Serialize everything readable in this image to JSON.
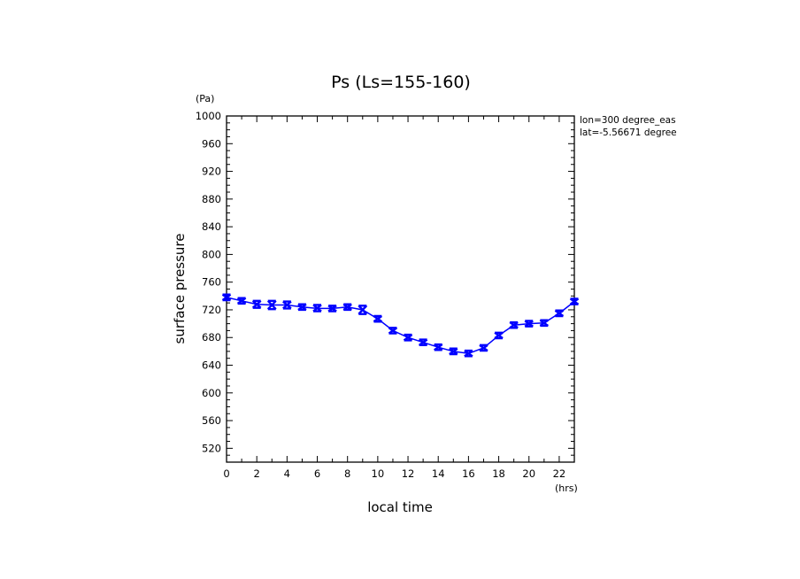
{
  "chart_data": {
    "type": "line",
    "title": "Ps (Ls=155-160)",
    "xlabel": "local time",
    "ylabel": "surface pressure",
    "x_unit": "(hrs)",
    "y_unit": "(Pa)",
    "xlim": [
      0,
      23
    ],
    "ylim": [
      500,
      1000
    ],
    "x_ticks": [
      0,
      2,
      4,
      6,
      8,
      10,
      12,
      14,
      16,
      18,
      20,
      22
    ],
    "y_ticks": [
      520,
      560,
      600,
      640,
      680,
      720,
      760,
      800,
      840,
      880,
      920,
      960,
      1000
    ],
    "grid": false,
    "annotations": [
      "lon=300 degree_eas",
      "lat=-5.56671 degree"
    ],
    "series": [
      {
        "x": [
          0,
          1,
          2,
          3,
          4,
          5,
          6,
          7,
          8,
          9,
          10,
          11,
          12,
          13,
          14,
          15,
          16,
          17,
          18,
          19,
          20,
          21,
          22,
          23
        ],
        "values": [
          738,
          733,
          728,
          727,
          727,
          724,
          722,
          722,
          724,
          720,
          707,
          690,
          680,
          673,
          666,
          660,
          657,
          665,
          683,
          698,
          700,
          701,
          715,
          732
        ],
        "ranges": [
          [
            734,
            742
          ],
          [
            729,
            737
          ],
          [
            723,
            733
          ],
          [
            721,
            733
          ],
          [
            722,
            732
          ],
          [
            720,
            728
          ],
          [
            718,
            727
          ],
          [
            718,
            726
          ],
          [
            720,
            728
          ],
          [
            714,
            726
          ],
          [
            703,
            711
          ],
          [
            686,
            694
          ],
          [
            676,
            684
          ],
          [
            669,
            677
          ],
          [
            662,
            670
          ],
          [
            656,
            664
          ],
          [
            653,
            661
          ],
          [
            661,
            669
          ],
          [
            679,
            687
          ],
          [
            694,
            702
          ],
          [
            696,
            704
          ],
          [
            697,
            705
          ],
          [
            711,
            719
          ],
          [
            728,
            736
          ]
        ],
        "color": "#0000ff"
      }
    ]
  }
}
